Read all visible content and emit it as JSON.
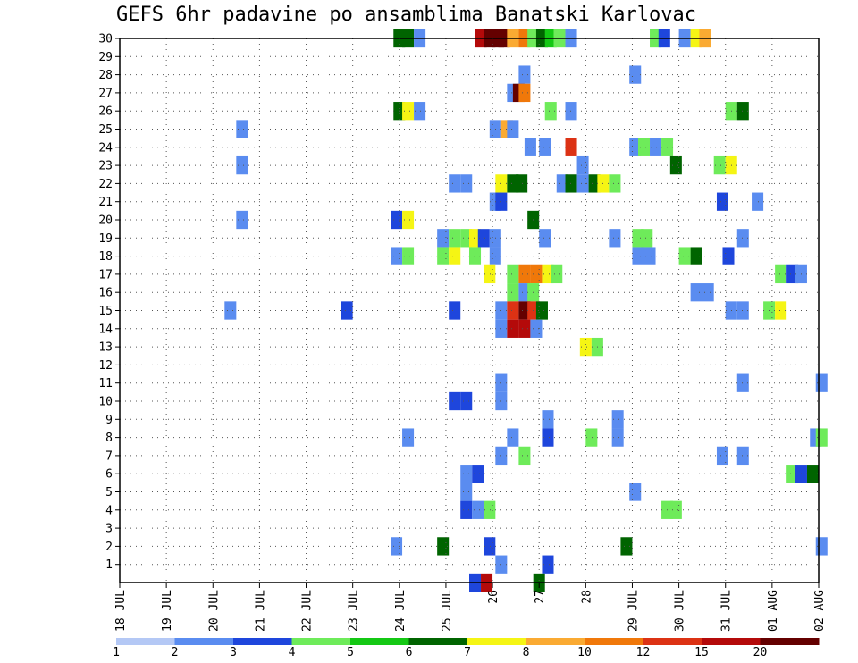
{
  "chart_data": {
    "type": "heatmap",
    "title": "GEFS 6hr padavine po ansamblima Banatski Karlovac",
    "x_tick_labels": [
      "18 JUL",
      "19 JUL",
      "20 JUL",
      "21 JUL",
      "22 JUL",
      "23 JUL",
      "24 JUL",
      "25 JUL",
      "26",
      "27",
      "28",
      "29 JUL",
      "30 JUL",
      "31 JUL",
      "01 AUG",
      "02 AUG"
    ],
    "y_tick_labels": [
      "1",
      "2",
      "3",
      "4",
      "5",
      "6",
      "7",
      "8",
      "9",
      "10",
      "11",
      "12",
      "13",
      "14",
      "15",
      "16",
      "17",
      "18",
      "19",
      "20",
      "21",
      "22",
      "23",
      "24",
      "25",
      "26",
      "27",
      "28",
      "29",
      "30"
    ],
    "xlim": [
      0,
      60
    ],
    "ylim": [
      0,
      30
    ],
    "steps_per_day": 4,
    "grid": true,
    "colorbar": {
      "labels": [
        "1",
        "2",
        "3",
        "4",
        "5",
        "6",
        "7",
        "8",
        "10",
        "12",
        "15",
        "20"
      ],
      "colors": [
        "#b4c8f5",
        "#5a8cf0",
        "#1e46dc",
        "#6eeb5a",
        "#14c814",
        "#006400",
        "#f5f514",
        "#faaa32",
        "#f0780a",
        "#dc3214",
        "#b40a0a",
        "#640000"
      ]
    },
    "cells": [
      [
        23.5,
        30,
        5
      ],
      [
        24.25,
        30,
        5
      ],
      [
        25.25,
        30,
        1
      ],
      [
        30.5,
        30,
        10
      ],
      [
        31.25,
        30,
        11
      ],
      [
        32,
        30,
        11
      ],
      [
        32.5,
        30,
        11
      ],
      [
        33.25,
        30,
        7
      ],
      [
        34.25,
        30,
        8
      ],
      [
        35,
        30,
        3
      ],
      [
        35.75,
        30,
        5
      ],
      [
        36.5,
        30,
        4
      ],
      [
        37.25,
        30,
        3
      ],
      [
        38.25,
        30,
        1
      ],
      [
        45.5,
        30,
        3
      ],
      [
        46.25,
        30,
        2
      ],
      [
        48,
        30,
        1
      ],
      [
        49,
        30,
        6
      ],
      [
        49.75,
        30,
        7
      ],
      [
        34.25,
        28,
        1
      ],
      [
        43.75,
        28,
        1
      ],
      [
        33.25,
        27,
        1
      ],
      [
        33.75,
        27,
        11
      ],
      [
        34.25,
        27,
        8
      ],
      [
        23.5,
        26,
        5
      ],
      [
        24.25,
        26,
        6
      ],
      [
        25.25,
        26,
        1
      ],
      [
        36.5,
        26,
        3
      ],
      [
        38.25,
        26,
        1
      ],
      [
        52,
        26,
        3
      ],
      [
        53,
        26,
        5
      ],
      [
        10,
        25,
        1
      ],
      [
        31.75,
        25,
        1
      ],
      [
        32.75,
        25,
        7
      ],
      [
        33.25,
        25,
        1
      ],
      [
        34.75,
        24,
        1
      ],
      [
        36,
        24,
        1
      ],
      [
        38.25,
        24,
        9
      ],
      [
        43.75,
        24,
        1
      ],
      [
        44.5,
        24,
        3
      ],
      [
        45.5,
        24,
        1
      ],
      [
        46.5,
        24,
        3
      ],
      [
        10,
        23,
        1
      ],
      [
        39.25,
        23,
        1
      ],
      [
        47.25,
        23,
        5
      ],
      [
        51,
        23,
        3
      ],
      [
        52,
        23,
        6
      ],
      [
        28.25,
        22,
        1
      ],
      [
        29.25,
        22,
        1
      ],
      [
        32.25,
        22,
        6
      ],
      [
        33.25,
        22,
        5
      ],
      [
        34,
        22,
        5
      ],
      [
        37.5,
        22,
        1
      ],
      [
        38.25,
        22,
        5
      ],
      [
        39.25,
        22,
        1
      ],
      [
        40.25,
        22,
        5
      ],
      [
        41,
        22,
        6
      ],
      [
        42,
        22,
        3
      ],
      [
        31.75,
        21,
        1
      ],
      [
        32.25,
        21,
        2
      ],
      [
        51.25,
        21,
        2
      ],
      [
        54.25,
        21,
        1
      ],
      [
        10,
        20,
        1
      ],
      [
        23.25,
        20,
        2
      ],
      [
        24.25,
        20,
        6
      ],
      [
        35,
        20,
        5
      ],
      [
        27.25,
        19,
        1
      ],
      [
        28.25,
        19,
        3
      ],
      [
        29.25,
        19,
        3
      ],
      [
        30,
        19,
        6
      ],
      [
        30.75,
        19,
        2
      ],
      [
        31.75,
        19,
        1
      ],
      [
        36,
        19,
        1
      ],
      [
        42,
        19,
        1
      ],
      [
        44,
        19,
        3
      ],
      [
        44.75,
        19,
        3
      ],
      [
        53,
        19,
        1
      ],
      [
        23.25,
        18,
        1
      ],
      [
        24.25,
        18,
        3
      ],
      [
        27.25,
        18,
        3
      ],
      [
        28.25,
        18,
        6
      ],
      [
        30,
        18,
        3
      ],
      [
        31.75,
        18,
        1
      ],
      [
        44,
        18,
        1
      ],
      [
        45,
        18,
        1
      ],
      [
        48,
        18,
        3
      ],
      [
        49,
        18,
        5
      ],
      [
        51.75,
        18,
        2
      ],
      [
        31.25,
        17,
        6
      ],
      [
        33.25,
        17,
        3
      ],
      [
        34.25,
        17,
        8
      ],
      [
        35.25,
        17,
        8
      ],
      [
        36.25,
        17,
        6
      ],
      [
        37,
        17,
        3
      ],
      [
        56.25,
        17,
        3
      ],
      [
        57.25,
        17,
        2
      ],
      [
        58,
        17,
        1
      ],
      [
        33.25,
        16,
        3
      ],
      [
        34.25,
        16,
        1
      ],
      [
        35,
        16,
        3
      ],
      [
        49,
        16,
        1
      ],
      [
        50,
        16,
        1
      ],
      [
        9,
        15,
        1
      ],
      [
        19,
        15,
        2
      ],
      [
        28.25,
        15,
        2
      ],
      [
        32.25,
        15,
        1
      ],
      [
        33.25,
        15,
        9
      ],
      [
        34.25,
        15,
        11
      ],
      [
        35,
        15,
        9
      ],
      [
        35.75,
        15,
        5
      ],
      [
        52,
        15,
        1
      ],
      [
        53,
        15,
        1
      ],
      [
        55.25,
        15,
        3
      ],
      [
        56.25,
        15,
        6
      ],
      [
        32.25,
        14,
        1
      ],
      [
        33.25,
        14,
        10
      ],
      [
        34.25,
        14,
        10
      ],
      [
        35.25,
        14,
        1
      ],
      [
        39.5,
        13,
        6
      ],
      [
        40.5,
        13,
        3
      ],
      [
        32.25,
        11,
        1
      ],
      [
        32.25,
        10,
        1
      ],
      [
        53,
        11,
        1
      ],
      [
        59.75,
        11,
        1
      ],
      [
        28.25,
        10,
        2
      ],
      [
        29.25,
        10,
        2
      ],
      [
        36.25,
        9,
        1
      ],
      [
        42.25,
        9,
        1
      ],
      [
        24.25,
        8,
        1
      ],
      [
        33.25,
        8,
        1
      ],
      [
        36.25,
        8,
        2
      ],
      [
        40,
        8,
        3
      ],
      [
        42.25,
        8,
        1
      ],
      [
        59.25,
        8,
        1
      ],
      [
        59.75,
        8,
        3
      ],
      [
        32.25,
        7,
        1
      ],
      [
        34.25,
        7,
        3
      ],
      [
        51.25,
        7,
        1
      ],
      [
        53,
        7,
        1
      ],
      [
        29.25,
        6,
        1
      ],
      [
        30.25,
        6,
        2
      ],
      [
        57.25,
        6,
        3
      ],
      [
        58,
        6,
        2
      ],
      [
        59,
        6,
        5
      ],
      [
        29.25,
        5,
        1
      ],
      [
        43.75,
        5,
        1
      ],
      [
        29.25,
        4,
        2
      ],
      [
        30.25,
        4,
        1
      ],
      [
        31.25,
        4,
        3
      ],
      [
        46.5,
        4,
        3
      ],
      [
        47.25,
        4,
        3
      ],
      [
        23.25,
        2,
        1
      ],
      [
        27.25,
        2,
        5
      ],
      [
        31.25,
        2,
        2
      ],
      [
        43,
        2,
        5
      ],
      [
        59.75,
        2,
        1
      ],
      [
        32.25,
        1,
        1
      ],
      [
        36.25,
        1,
        2
      ],
      [
        30,
        0,
        2
      ],
      [
        31,
        0,
        10
      ],
      [
        35.5,
        0,
        5
      ]
    ]
  }
}
